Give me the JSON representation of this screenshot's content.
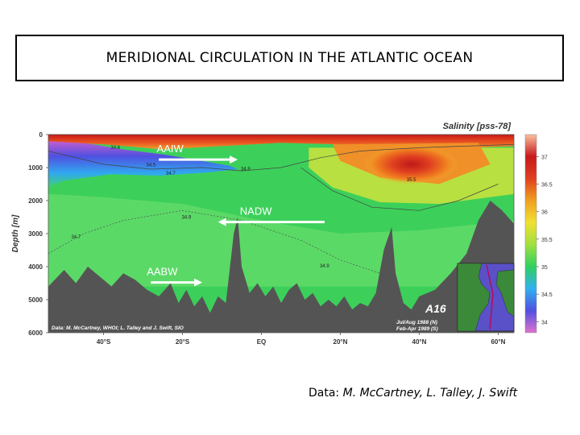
{
  "slide": {
    "title": "MERIDIONAL CIRCULATION IN THE ATLANTIC OCEAN",
    "credit_prefix": "Data: ",
    "credit_names": "M. McCartney, L. Talley, J. Swift"
  },
  "chart_data": {
    "type": "heatmap",
    "title": "Salinity [pss-78]",
    "ylabel": "Depth [m]",
    "xlabel": "",
    "x_ticks": [
      "40°S",
      "20°S",
      "EQ",
      "20°N",
      "40°N",
      "60°N"
    ],
    "x_tick_values": [
      -40,
      -20,
      0,
      20,
      40,
      60
    ],
    "xlim": [
      -54,
      64
    ],
    "y_ticks": [
      "0",
      "1000",
      "2000",
      "3000",
      "4000",
      "5000",
      "6000"
    ],
    "y_tick_values": [
      0,
      1000,
      2000,
      3000,
      4000,
      5000,
      6000
    ],
    "ylim": [
      0,
      6000
    ],
    "y_inverted": true,
    "colorbar": {
      "ticks": [
        "37",
        "36.5",
        "36",
        "35.5",
        "35",
        "34.5",
        "34"
      ],
      "tick_values": [
        37,
        36.5,
        36,
        35.5,
        35,
        34.5,
        34
      ],
      "range": [
        33.8,
        37.4
      ],
      "colors": [
        "#e070d0",
        "#5050e0",
        "#30b0f0",
        "#30d060",
        "#a0e040",
        "#f0e030",
        "#f0a020",
        "#e04020",
        "#c81818",
        "#f8c0a0"
      ]
    },
    "contour_labels": [
      {
        "text": "34.6",
        "x": -37,
        "depth": 440
      },
      {
        "text": "34.5",
        "x": -28,
        "depth": 960
      },
      {
        "text": "34.7",
        "x": -23,
        "depth": 1220
      },
      {
        "text": "34.9",
        "x": -4,
        "depth": 1080
      },
      {
        "text": "34.9",
        "x": -19,
        "depth": 2550
      },
      {
        "text": "34.7",
        "x": -47,
        "depth": 3150
      },
      {
        "text": "34.9",
        "x": 16,
        "depth": 4020
      },
      {
        "text": "35.5",
        "x": 38,
        "depth": 1420
      }
    ],
    "water_masses": [
      {
        "label": "AAIW",
        "x_start": -26,
        "x_end": -6,
        "depth": 760
      },
      {
        "label": "NADW",
        "x_start": 16,
        "x_end": -11,
        "depth": 2650
      },
      {
        "label": "AABW",
        "x_start": -28,
        "x_end": -15,
        "depth": 4480
      }
    ],
    "annotations": {
      "section": "A16",
      "cruise_north": "Jul/Aug 1988 (N)",
      "cruise_south": "Feb-Apr 1989 (S)",
      "source": "Data: M. McCartney, WHOI; L. Talley and J. Swift, SIO"
    }
  }
}
